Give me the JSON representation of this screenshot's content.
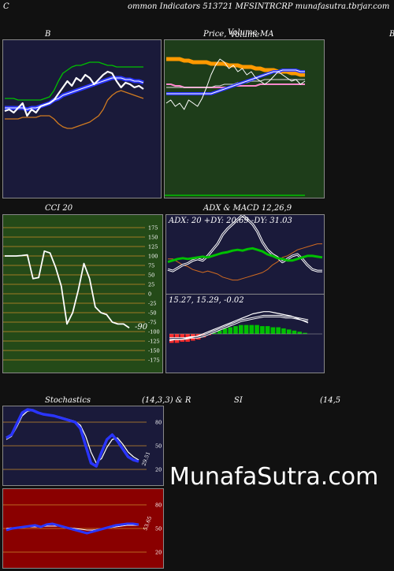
{
  "header": {
    "left_letter": "C",
    "title": "ommon  Indicators 513721 MFSINTRCRP munafasutra.tbrjar.com"
  },
  "panels": {
    "bb_title": "B",
    "price_title": "Price,",
    "price_title_overlap1": "Volume",
    "price_title_overlap2": "Volume",
    "price_title_ma": "MA",
    "right_edge_letter": "B",
    "cci_title": "CCI 20",
    "adx_title": "ADX  & MACD 12,26,9",
    "adx_label": "ADX: 20  +DY: 20.69 -DY: 31.03",
    "macd_label": "15.27,  15.29,  -0.02",
    "stoch_title_left": "Stochastics",
    "stoch_title_mid": "(14,3,3) & R",
    "stoch_title_si": "SI",
    "stoch_title_right": "(14,5"
  },
  "watermark": "MunafaSutra.com",
  "colors": {
    "bb_bg": "#1a1a3a",
    "price_bg": "#1e3d1a",
    "cci_bg": "#244a18",
    "adx_bg": "#1a1a3a",
    "stoch_bg": "#1a1a3a",
    "rsi_bg": "#8a0000",
    "grid": "#c98a2a",
    "blue": "#2a35ff",
    "green": "#00c000",
    "orange": "#ff9900",
    "pink": "#ff88cc"
  },
  "chart_data": [
    {
      "type": "line",
      "name_id": "bollinger",
      "series": [
        {
          "key": "price",
          "values": [
            55,
            56,
            54,
            57,
            60,
            52,
            56,
            54,
            58,
            59,
            60,
            62,
            66,
            70,
            74,
            71,
            76,
            74,
            78,
            76,
            72,
            75,
            78,
            80,
            79,
            74,
            70,
            73,
            72,
            70,
            71,
            69
          ]
        },
        {
          "key": "mid",
          "values": [
            57,
            57,
            57,
            57,
            57,
            56,
            57,
            57,
            58,
            59,
            60,
            62,
            63,
            65,
            66,
            67,
            68,
            69,
            70,
            71,
            72,
            73,
            74,
            75,
            76,
            76,
            76,
            75,
            75,
            74,
            74,
            73
          ]
        },
        {
          "key": "upper",
          "values": [
            63,
            63,
            63,
            62,
            62,
            62,
            62,
            62,
            62,
            63,
            64,
            68,
            74,
            79,
            81,
            83,
            84,
            84,
            85,
            86,
            86,
            86,
            85,
            84,
            84,
            83,
            83,
            83,
            83,
            83,
            83,
            83
          ]
        },
        {
          "key": "lower",
          "values": [
            50,
            50,
            50,
            50,
            51,
            51,
            51,
            51,
            52,
            52,
            52,
            50,
            47,
            45,
            44,
            44,
            45,
            46,
            47,
            48,
            50,
            52,
            56,
            62,
            65,
            67,
            68,
            67,
            66,
            65,
            64,
            63
          ]
        }
      ],
      "ylim": [
        0,
        100
      ]
    },
    {
      "type": "line",
      "name_id": "price_ma",
      "series": [
        {
          "key": "price",
          "values": [
            60,
            62,
            58,
            60,
            56,
            62,
            60,
            58,
            63,
            70,
            78,
            84,
            88,
            86,
            82,
            84,
            80,
            82,
            78,
            80,
            76,
            74,
            72,
            74,
            77,
            80,
            78,
            76,
            74,
            75,
            72,
            74
          ]
        },
        {
          "key": "ma_orange",
          "values": [
            88,
            88,
            88,
            88,
            87,
            87,
            86,
            86,
            86,
            86,
            85,
            85,
            85,
            85,
            84,
            84,
            84,
            83,
            83,
            83,
            82,
            82,
            81,
            81,
            81,
            80,
            80,
            80,
            79,
            79,
            78,
            78
          ]
        },
        {
          "key": "ma_blue",
          "values": [
            66,
            66,
            66,
            66,
            66,
            66,
            66,
            66,
            66,
            66,
            66,
            67,
            68,
            69,
            70,
            71,
            72,
            73,
            74,
            75,
            76,
            77,
            78,
            79,
            80,
            80,
            81,
            81,
            81,
            81,
            80,
            80
          ]
        },
        {
          "key": "ma_pink",
          "values": [
            72,
            72,
            71,
            71,
            70,
            70,
            70,
            70,
            70,
            70,
            70,
            70,
            70,
            70,
            70,
            71,
            71,
            71,
            71,
            71,
            71,
            72,
            72,
            72,
            72,
            72,
            72,
            72,
            72,
            72,
            72,
            72
          ]
        },
        {
          "key": "ma_white",
          "values": [
            70,
            70,
            70,
            70,
            70,
            70,
            70,
            70,
            70,
            70,
            70,
            71,
            71,
            72,
            72,
            72,
            73,
            73,
            73,
            74,
            74,
            74,
            75,
            75,
            75,
            75,
            75,
            75,
            75,
            75,
            75,
            75
          ]
        }
      ],
      "ylim": [
        0,
        100
      ]
    },
    {
      "type": "line",
      "name_id": "cci",
      "values": [
        100,
        100,
        100,
        101,
        103,
        40,
        43,
        113,
        108,
        70,
        20,
        -80,
        -50,
        10,
        80,
        40,
        -35,
        -50,
        -55,
        -75,
        -80,
        -80,
        -90
      ],
      "last_value_label": "-90",
      "ylim": [
        -200,
        200
      ],
      "ticks": [
        175,
        150,
        125,
        100,
        75,
        50,
        25,
        0,
        -25,
        -50,
        -75,
        -100,
        -125,
        -150,
        -175
      ]
    },
    {
      "type": "line",
      "name_id": "adx",
      "series": [
        {
          "key": "adx",
          "values": [
            40,
            42,
            44,
            45,
            44,
            45,
            46,
            47,
            46,
            48,
            50,
            52,
            53,
            55,
            56,
            55,
            57,
            58,
            56,
            54,
            50,
            48,
            45,
            44,
            42,
            42,
            44,
            46,
            48,
            48,
            47,
            46
          ]
        },
        {
          "key": "plus_di",
          "values": [
            30,
            28,
            32,
            36,
            38,
            42,
            44,
            42,
            48,
            56,
            64,
            76,
            84,
            90,
            96,
            102,
            96,
            90,
            80,
            66,
            56,
            50,
            46,
            40,
            44,
            48,
            50,
            44,
            36,
            30,
            28,
            28
          ]
        },
        {
          "key": "minus_di",
          "values": [
            44,
            44,
            40,
            36,
            34,
            30,
            28,
            26,
            28,
            26,
            24,
            20,
            18,
            16,
            16,
            18,
            20,
            22,
            24,
            26,
            30,
            36,
            40,
            46,
            48,
            52,
            56,
            58,
            60,
            62,
            64,
            64
          ]
        }
      ],
      "ylim": [
        0,
        100
      ]
    },
    {
      "type": "bar",
      "name_id": "macd",
      "values": [
        -8,
        -8,
        -7,
        -7,
        -6,
        -5,
        -3,
        -1,
        1,
        3,
        5,
        6,
        7,
        8,
        8,
        8,
        8,
        7,
        7,
        6,
        6,
        5,
        4,
        3,
        2,
        1
      ],
      "macd_line": [
        -6,
        -5,
        -5,
        -4,
        -3,
        -2,
        0,
        2,
        4,
        6,
        8,
        10,
        12,
        14,
        16,
        18,
        19,
        20,
        20,
        19,
        18,
        17,
        16,
        14,
        12,
        10
      ],
      "signal_line": [
        -4,
        -4,
        -4,
        -4,
        -3,
        -3,
        -2,
        0,
        2,
        4,
        6,
        8,
        10,
        12,
        13,
        14,
        15,
        16,
        16,
        16,
        16,
        15,
        15,
        14,
        13,
        12
      ],
      "ylim": [
        -30,
        40
      ]
    },
    {
      "type": "line",
      "name_id": "stochastic",
      "series": [
        {
          "key": "k",
          "values": [
            60,
            64,
            78,
            92,
            96,
            95,
            92,
            90,
            89,
            88,
            86,
            84,
            82,
            80,
            72,
            50,
            28,
            24,
            42,
            58,
            64,
            56,
            46,
            36,
            32,
            30
          ]
        },
        {
          "key": "d",
          "values": [
            58,
            62,
            74,
            88,
            94,
            95,
            93,
            90,
            89,
            88,
            87,
            85,
            83,
            81,
            76,
            62,
            42,
            28,
            34,
            48,
            58,
            60,
            52,
            42,
            36,
            32
          ]
        }
      ],
      "last_value_label": "29.51",
      "ticks": [
        80,
        50,
        20
      ],
      "ylim": [
        0,
        100
      ]
    },
    {
      "type": "line",
      "name_id": "rsi",
      "series": [
        {
          "key": "rsi",
          "values": [
            48,
            50,
            51,
            52,
            53,
            54,
            52,
            55,
            56,
            54,
            52,
            50,
            48,
            46,
            44,
            46,
            48,
            50,
            52,
            54,
            55,
            56,
            56,
            55
          ]
        },
        {
          "key": "rsi_signal",
          "values": [
            50,
            51,
            51,
            52,
            52,
            52,
            52,
            53,
            53,
            53,
            52,
            51,
            50,
            49,
            48,
            48,
            49,
            50,
            51,
            52,
            53,
            54,
            54,
            54
          ]
        }
      ],
      "last_value_label": "53.65",
      "ticks": [
        80,
        50,
        20
      ],
      "ylim": [
        0,
        100
      ]
    }
  ]
}
